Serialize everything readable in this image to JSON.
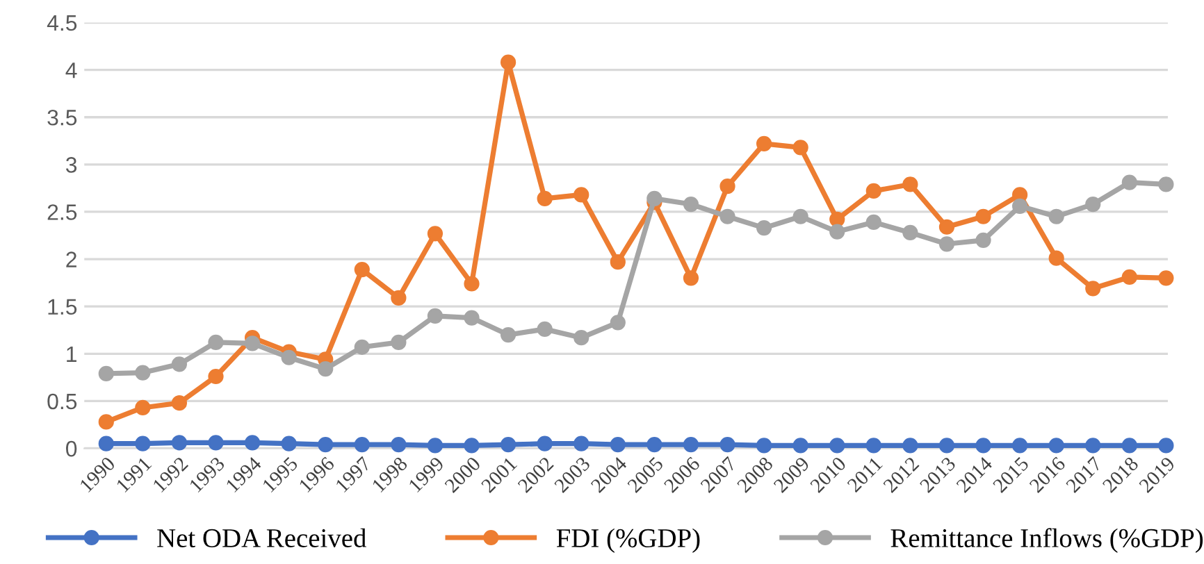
{
  "chart_data": {
    "type": "line",
    "categories": [
      "1990",
      "1991",
      "1992",
      "1993",
      "1994",
      "1995",
      "1996",
      "1997",
      "1998",
      "1999",
      "2000",
      "2001",
      "2002",
      "2003",
      "2004",
      "2005",
      "2006",
      "2007",
      "2008",
      "2009",
      "2010",
      "2011",
      "2012",
      "2013",
      "2014",
      "2015",
      "2016",
      "2017",
      "2018",
      "2019"
    ],
    "series": [
      {
        "name": "Net ODA Received",
        "color": "#4472c4",
        "values": [
          0.05,
          0.05,
          0.06,
          0.06,
          0.06,
          0.05,
          0.04,
          0.04,
          0.04,
          0.03,
          0.03,
          0.04,
          0.05,
          0.05,
          0.04,
          0.04,
          0.04,
          0.04,
          0.03,
          0.03,
          0.03,
          0.03,
          0.03,
          0.03,
          0.03,
          0.03,
          0.03,
          0.03,
          0.03,
          0.03
        ]
      },
      {
        "name": "FDI (%GDP)",
        "color": "#ed7d31",
        "values": [
          0.28,
          0.43,
          0.48,
          0.76,
          1.17,
          1.02,
          0.94,
          1.89,
          1.59,
          2.27,
          1.74,
          4.08,
          2.64,
          2.68,
          1.97,
          2.6,
          1.8,
          2.77,
          3.22,
          3.18,
          2.42,
          2.72,
          2.79,
          2.34,
          2.45,
          2.68,
          2.01,
          1.69,
          1.81,
          1.8
        ]
      },
      {
        "name": "Remittance Inflows (%GDP)",
        "color": "#a5a5a5",
        "values": [
          0.79,
          0.8,
          0.89,
          1.12,
          1.11,
          0.96,
          0.84,
          1.07,
          1.12,
          1.4,
          1.38,
          1.2,
          1.26,
          1.17,
          1.33,
          2.64,
          2.58,
          2.45,
          2.33,
          2.45,
          2.29,
          2.39,
          2.28,
          2.16,
          2.2,
          2.56,
          2.45,
          2.58,
          2.81,
          2.79
        ]
      }
    ],
    "ylim": [
      0,
      4.5
    ],
    "yticks": [
      0,
      0.5,
      1,
      1.5,
      2,
      2.5,
      3,
      3.5,
      4,
      4.5
    ],
    "grid": "y",
    "legend": "bottom",
    "marker": "circle",
    "line_style": "solid"
  }
}
